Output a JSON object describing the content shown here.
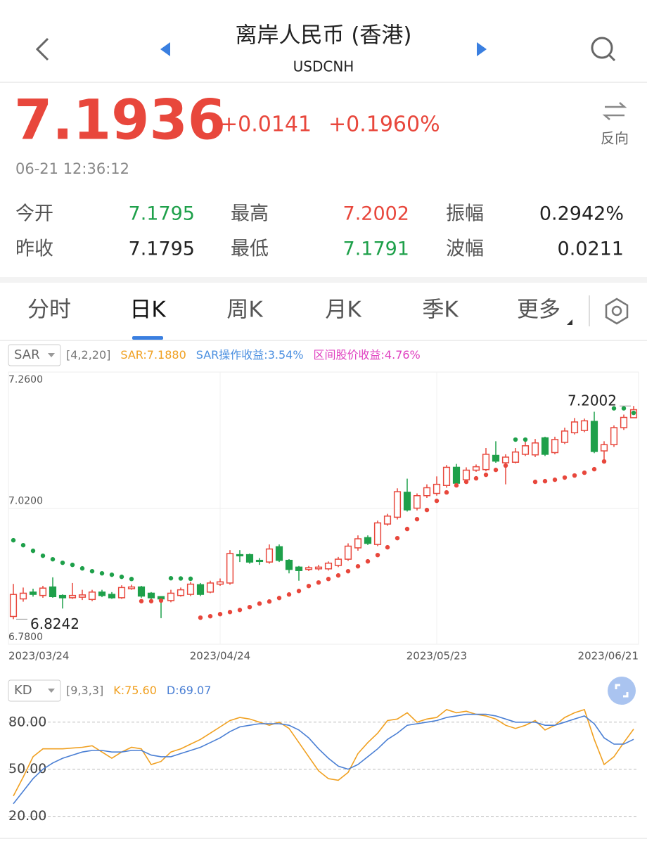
{
  "header": {
    "title": "离岸人民币 (香港)",
    "subtitle": "USDCNH"
  },
  "quote": {
    "price": "7.1936",
    "change": "+0.0141",
    "change_percent": "+0.1960%",
    "time": "06-21 12:36:12",
    "reverse": "反向",
    "color": "#e8473c"
  },
  "stats": [
    [
      {
        "label": "今开",
        "value": "7.1795",
        "color": "#1ea04a"
      },
      {
        "label": "最高",
        "value": "7.2002",
        "color": "#e8473c"
      },
      {
        "label": "振幅",
        "value": "0.2942%",
        "color": "#222222"
      }
    ],
    [
      {
        "label": "昨收",
        "value": "7.1795",
        "color": "#222222"
      },
      {
        "label": "最低",
        "value": "7.1791",
        "color": "#1ea04a"
      },
      {
        "label": "波幅",
        "value": "0.0211",
        "color": "#222222"
      }
    ]
  ],
  "tabs": [
    "分时",
    "日K",
    "周K",
    "月K",
    "季K",
    "更多"
  ],
  "active_tab": 1,
  "chart_data": [
    {
      "type": "candlestick",
      "indicator": "SAR",
      "params": "[4,2,20]",
      "indicator_labels": [
        {
          "text": "SAR:7.1880",
          "color": "#f0a020"
        },
        {
          "text": "SAR操作收益:3.54%",
          "color": "#4a8fe0"
        },
        {
          "text": "区间股价收益:4.76%",
          "color": "#e040c0"
        }
      ],
      "categories": [
        "2023/03/24",
        null,
        null,
        null,
        null,
        null,
        null,
        null,
        null,
        null,
        null,
        null,
        null,
        null,
        null,
        null,
        null,
        null,
        null,
        null,
        null,
        "2023/04/24",
        null,
        null,
        null,
        null,
        null,
        null,
        null,
        null,
        null,
        null,
        null,
        null,
        null,
        null,
        null,
        null,
        null,
        null,
        null,
        null,
        null,
        "2023/05/23",
        null,
        null,
        null,
        null,
        null,
        null,
        null,
        null,
        null,
        null,
        null,
        null,
        null,
        null,
        null,
        null,
        null,
        null,
        null,
        "2023/06/21"
      ],
      "open": [
        6.829,
        6.86,
        6.872,
        6.866,
        6.881,
        6.866,
        6.862,
        6.863,
        6.859,
        6.872,
        6.868,
        6.862,
        6.878,
        6.881,
        6.87,
        6.864,
        6.857,
        6.866,
        6.868,
        6.885,
        6.872,
        6.886,
        6.888,
        6.938,
        6.938,
        6.928,
        6.925,
        6.952,
        6.928,
        6.916,
        6.912,
        6.913,
        6.913,
        6.919,
        6.93,
        6.95,
        6.968,
        6.956,
        6.992,
        7.004,
        7.048,
        7.02,
        7.042,
        7.046,
        7.06,
        7.092,
        7.07,
        7.087,
        7.088,
        7.113,
        7.1,
        7.101,
        7.115,
        7.114,
        7.144,
        7.118,
        7.136,
        7.153,
        7.157,
        7.173,
        7.121,
        7.132,
        7.162,
        7.1795
      ],
      "high": [
        6.8864,
        6.88,
        6.878,
        6.883,
        6.898,
        6.868,
        6.888,
        6.876,
        6.876,
        6.876,
        6.872,
        6.884,
        6.885,
        6.883,
        6.872,
        6.864,
        6.876,
        6.88,
        6.89,
        6.888,
        6.892,
        6.896,
        6.946,
        6.946,
        6.94,
        6.932,
        6.956,
        6.956,
        6.93,
        6.918,
        6.918,
        6.92,
        6.926,
        6.934,
        6.958,
        6.972,
        6.972,
        6.998,
        7.01,
        7.055,
        7.072,
        7.046,
        7.062,
        7.076,
        7.096,
        7.098,
        7.092,
        7.097,
        7.126,
        7.138,
        7.115,
        7.126,
        7.14,
        7.142,
        7.146,
        7.146,
        7.162,
        7.179,
        7.178,
        7.19,
        7.138,
        7.166,
        7.185,
        7.2002
      ],
      "low": [
        6.8242,
        6.855,
        6.864,
        6.862,
        6.862,
        6.843,
        6.86,
        6.858,
        6.856,
        6.863,
        6.86,
        6.86,
        6.876,
        6.862,
        6.86,
        6.826,
        6.854,
        6.864,
        6.865,
        6.865,
        6.87,
        6.883,
        6.885,
        6.925,
        6.922,
        6.92,
        6.922,
        6.925,
        6.905,
        6.892,
        6.909,
        6.91,
        6.91,
        6.916,
        6.927,
        6.945,
        6.955,
        6.953,
        6.989,
        7.0,
        7.014,
        7.016,
        7.038,
        7.042,
        7.056,
        7.06,
        7.067,
        7.084,
        7.085,
        7.1,
        7.062,
        7.099,
        7.112,
        7.11,
        7.112,
        7.115,
        7.133,
        7.15,
        7.154,
        7.117,
        7.106,
        7.128,
        7.158,
        7.1791
      ],
      "close": [
        6.8678,
        6.87,
        6.868,
        6.879,
        6.864,
        6.862,
        6.866,
        6.867,
        6.872,
        6.866,
        6.862,
        6.88,
        6.881,
        6.865,
        6.862,
        6.86,
        6.87,
        6.876,
        6.886,
        6.868,
        6.888,
        6.89,
        6.94,
        6.936,
        6.925,
        6.926,
        6.948,
        6.928,
        6.912,
        6.91,
        6.915,
        6.916,
        6.923,
        6.93,
        6.953,
        6.966,
        6.958,
        6.994,
        7.006,
        7.049,
        7.017,
        7.042,
        7.056,
        7.062,
        7.092,
        7.064,
        7.087,
        7.093,
        7.115,
        7.103,
        7.11,
        7.119,
        7.13,
        7.135,
        7.115,
        7.141,
        7.156,
        7.172,
        7.174,
        7.12,
        7.132,
        7.162,
        7.18,
        7.1936
      ],
      "sar": [
        6.9634,
        6.9547,
        6.9448,
        6.9361,
        6.9299,
        6.9237,
        6.92,
        6.9138,
        6.9088,
        6.9051,
        6.9026,
        6.8989,
        6.8951,
        6.856,
        6.856,
        6.857,
        6.8964,
        6.896,
        6.8955,
        6.8269,
        6.8294,
        6.8331,
        6.8368,
        6.8405,
        6.8455,
        6.8517,
        6.8554,
        6.8616,
        6.8678,
        6.874,
        6.8827,
        6.8889,
        6.8951,
        6.9014,
        6.9088,
        6.9175,
        6.9262,
        6.9373,
        6.951,
        6.9671,
        6.9833,
        7.0006,
        7.0168,
        7.0329,
        7.0478,
        7.0602,
        7.0664,
        7.0726,
        7.0788,
        7.0875,
        7.095,
        7.1409,
        7.1409,
        7.0664,
        7.0676,
        7.0701,
        7.0739,
        7.0776,
        7.0825,
        7.0887,
        7.1024,
        7.196,
        7.196,
        7.188
      ],
      "up_color": "#e8473c",
      "down_color": "#1ea04a",
      "ylim": [
        6.78,
        7.26
      ],
      "yticks": [
        {
          "value": 6.78,
          "label": "6.7800"
        },
        {
          "value": 7.02,
          "label": "7.0200"
        },
        {
          "value": 7.26,
          "label": "7.2600"
        }
      ],
      "annotations": [
        {
          "value": 7.2002,
          "label": "7.2002"
        },
        {
          "value": 6.8242,
          "label": "6.8242"
        }
      ]
    },
    {
      "type": "line",
      "indicator": "KD",
      "params": "[9,3,3]",
      "indicator_labels": [
        {
          "text": "K:75.60",
          "color": "#f0a020"
        },
        {
          "text": "D:69.07",
          "color": "#4a7fd4"
        }
      ],
      "series": [
        {
          "name": "K",
          "color": "#f0a020",
          "values": [
            33,
            45,
            58,
            63,
            63,
            63,
            63.5,
            64,
            65,
            61,
            57,
            61,
            64,
            63,
            53,
            55,
            61,
            63,
            66,
            69,
            73,
            77,
            81,
            83,
            82,
            80,
            78,
            80,
            76,
            67,
            58,
            49,
            44,
            43,
            48,
            60,
            67,
            73,
            81,
            82,
            86,
            80,
            82,
            83,
            88,
            86,
            87,
            85,
            84,
            82,
            78,
            76,
            78,
            81,
            75,
            78,
            83,
            86,
            88,
            69,
            53,
            58,
            67,
            75.6
          ]
        },
        {
          "name": "D",
          "color": "#4a7fd4",
          "values": [
            28,
            36,
            44,
            50,
            54,
            57,
            59,
            61,
            62,
            62,
            61,
            61,
            62,
            62,
            59,
            58,
            58,
            60,
            62,
            64,
            67,
            70,
            74,
            77,
            78,
            79,
            79,
            79,
            78,
            75,
            70,
            63,
            57,
            52,
            50,
            53,
            58,
            63,
            69,
            73,
            78,
            79,
            80,
            81,
            83,
            84,
            85,
            85,
            85,
            84,
            82,
            80,
            80,
            80,
            78,
            78,
            80,
            82,
            84,
            79,
            70,
            66,
            66,
            69.07
          ]
        }
      ],
      "ylim": [
        10,
        92
      ],
      "yticks": [
        {
          "value": 20,
          "label": "20.00"
        },
        {
          "value": 50,
          "label": "50.00"
        },
        {
          "value": 80,
          "label": "80.00"
        }
      ],
      "grid": true
    }
  ]
}
